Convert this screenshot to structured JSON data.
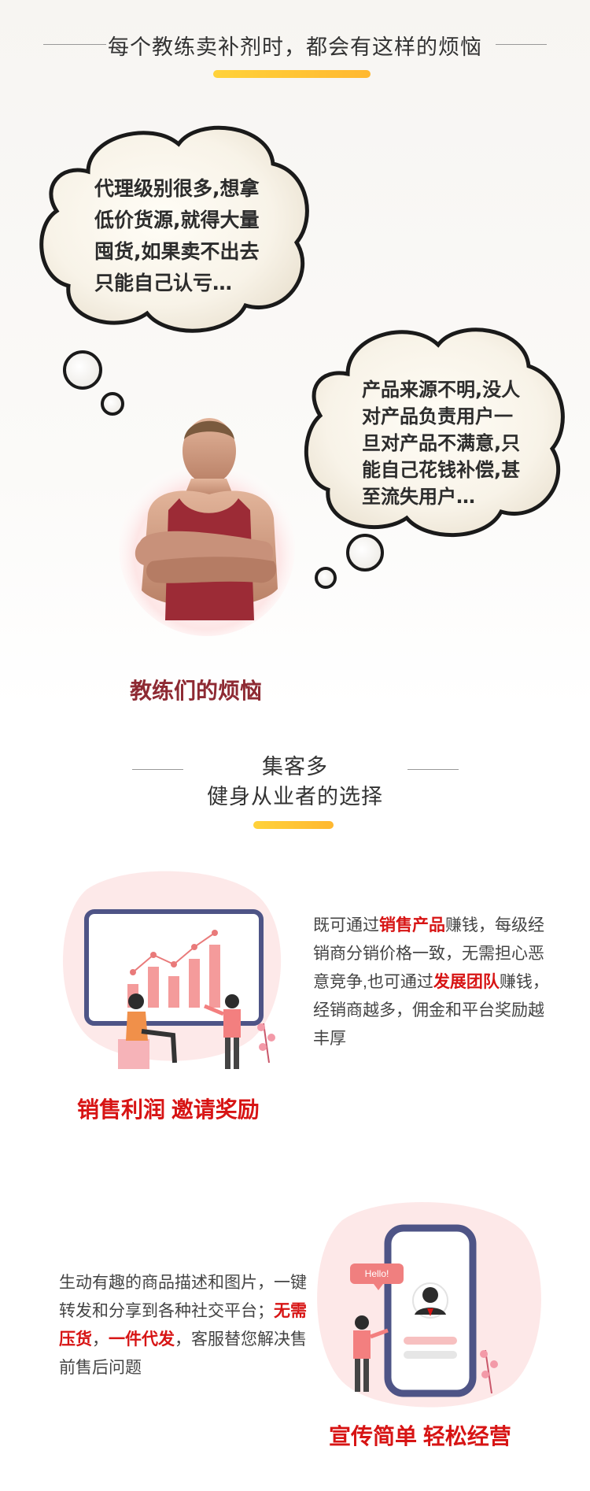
{
  "header": {
    "title": "每个教练卖补剂时，都会有这样的烦恼"
  },
  "thoughts": {
    "cloud1": {
      "lines": [
        "代理级别很多,想拿",
        "低价货源,就得大量",
        "囤货,如果卖不出去",
        "只能自己认亏…"
      ]
    },
    "cloud2": {
      "lines": [
        "产品来源不明,没人",
        "对产品负责用户一",
        "旦对产品不满意,只",
        "能自己花钱补偿,甚",
        "至流失用户…"
      ]
    },
    "caption": "教练们的烦恼"
  },
  "section2": {
    "title_line1": "集客多",
    "title_line2": "健身从业者的选择"
  },
  "feature1": {
    "caption": "销售利润  邀请奖励",
    "text": {
      "p1": "既可通过",
      "h1": "销售产品",
      "p2": "赚钱，每级经销商分销价格一致，无需担心恶意竞争,也可通过",
      "h2": "发展团队",
      "p3": "赚钱，经销商越多，佣金和平台奖励越丰厚"
    }
  },
  "feature2": {
    "caption": "宣传简单  轻松经营",
    "hello": "Hello!",
    "text": {
      "p1": "生动有趣的商品描述和图片，一键转发和分享到各种社交平台；",
      "h1": "无需压货",
      "p2": "，",
      "h2": "一件代发",
      "p3": "，客服替您解决售前售后问题"
    }
  },
  "colors": {
    "accent_yellow": "#ffc233",
    "highlight_red": "#d71414",
    "caption_maroon": "#8e2a33"
  }
}
